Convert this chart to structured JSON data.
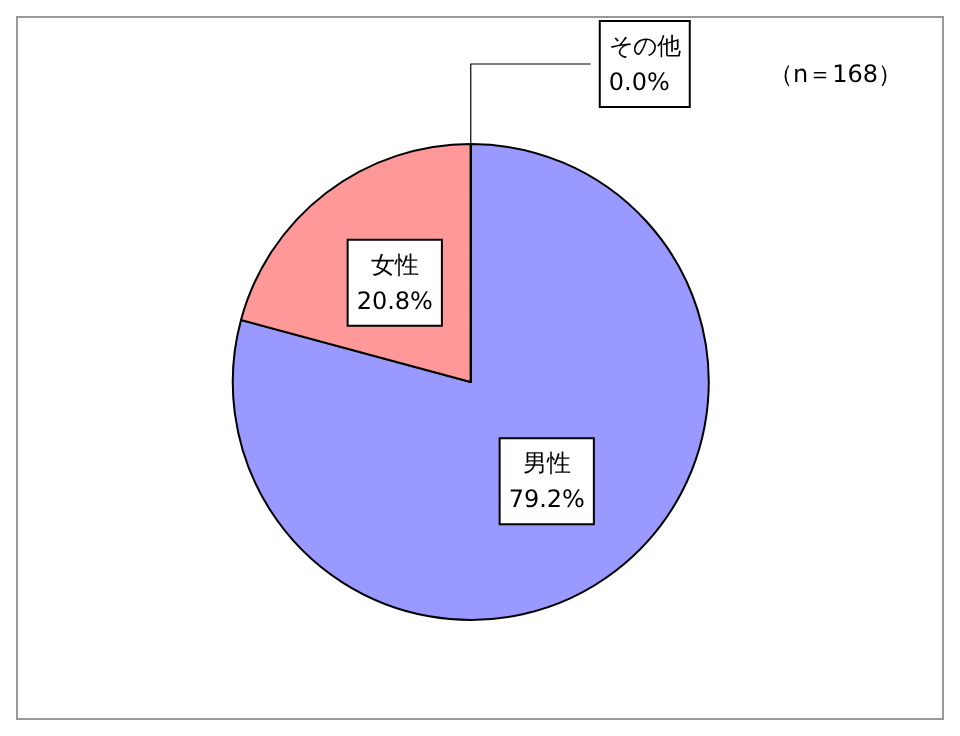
{
  "chart_data": {
    "type": "pie",
    "categories": [
      "男性",
      "女性",
      "その他"
    ],
    "values": [
      79.2,
      20.8,
      0.0
    ],
    "colors": [
      "#9999ff",
      "#ff9999",
      "#ffffff"
    ],
    "value_labels": [
      "79.2%",
      "20.8%",
      "0.0%"
    ],
    "annotations": [
      "（n＝168）"
    ],
    "legend": false
  }
}
